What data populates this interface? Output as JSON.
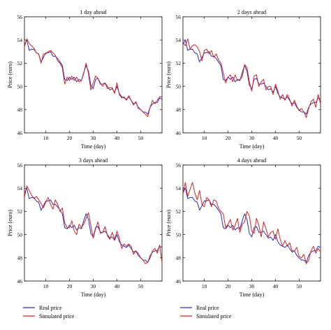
{
  "colors": {
    "real": "#2b2bb8",
    "simulated": "#d92020",
    "frame": "#000000"
  },
  "legend": {
    "placement": "bottom",
    "entries": [
      {
        "label": "Real price",
        "color": "#2b2bb8"
      },
      {
        "label": "Simulated price",
        "color": "#d92020"
      }
    ]
  },
  "chart_data": [
    {
      "type": "line",
      "title": "1 day ahead",
      "xlabel": "Time (day)",
      "ylabel": "Price (euro)",
      "xlim": [
        1,
        59
      ],
      "ylim": [
        46,
        56
      ],
      "xticks": [
        10,
        20,
        30,
        40,
        50
      ],
      "yticks": [
        46,
        48,
        50,
        52,
        54,
        56
      ],
      "grid": false,
      "series": [
        {
          "name": "Real price",
          "key": "real",
          "x": [
            1,
            2,
            3,
            4,
            5,
            6,
            7,
            8,
            9,
            10,
            11,
            12,
            13,
            14,
            15,
            16,
            17,
            18,
            19,
            20,
            21,
            22,
            23,
            24,
            25,
            26,
            27,
            28,
            29,
            30,
            31,
            32,
            33,
            34,
            35,
            36,
            37,
            38,
            39,
            40,
            41,
            42,
            43,
            44,
            45,
            46,
            47,
            48,
            49,
            50,
            51,
            52,
            53,
            54,
            55,
            56,
            57,
            58,
            59
          ],
          "values": [
            53.6,
            54.0,
            53.1,
            53.2,
            53.2,
            52.9,
            52.8,
            52.1,
            52.5,
            52.9,
            52.9,
            53.0,
            52.6,
            52.6,
            52.4,
            52.1,
            51.8,
            50.6,
            50.5,
            50.8,
            50.6,
            50.8,
            50.4,
            50.6,
            50.5,
            51.2,
            51.8,
            51.3,
            50.1,
            49.8,
            50.6,
            50.7,
            50.2,
            50.2,
            50.3,
            50.0,
            49.7,
            49.8,
            49.5,
            50.0,
            49.4,
            49.1,
            49.0,
            48.9,
            49.1,
            48.8,
            48.5,
            48.6,
            48.2,
            48.0,
            47.8,
            47.8,
            47.6,
            48.2,
            48.5,
            48.6,
            48.6,
            49.0,
            48.9
          ]
        },
        {
          "name": "Simulated price",
          "key": "simulated",
          "x": [
            1,
            2,
            3,
            4,
            5,
            6,
            7,
            8,
            9,
            10,
            11,
            12,
            13,
            14,
            15,
            16,
            17,
            18,
            19,
            20,
            21,
            22,
            23,
            24,
            25,
            26,
            27,
            28,
            29,
            30,
            31,
            32,
            33,
            34,
            35,
            36,
            37,
            38,
            39,
            40,
            41,
            42,
            43,
            44,
            45,
            46,
            47,
            48,
            49,
            50,
            51,
            52,
            53,
            54,
            55,
            56,
            57,
            58,
            59
          ],
          "values": [
            53.4,
            54.1,
            53.7,
            53.5,
            53.3,
            52.9,
            52.8,
            52.0,
            52.8,
            52.8,
            53.0,
            53.1,
            52.9,
            52.7,
            52.2,
            52.0,
            51.6,
            50.2,
            50.8,
            50.5,
            50.9,
            50.5,
            50.8,
            50.4,
            50.5,
            51.1,
            52.0,
            51.1,
            49.7,
            50.3,
            50.9,
            50.7,
            50.3,
            50.0,
            50.3,
            49.8,
            49.9,
            49.9,
            49.4,
            50.3,
            49.3,
            49.0,
            49.1,
            48.8,
            49.2,
            48.8,
            48.4,
            48.7,
            48.1,
            48.0,
            47.8,
            47.6,
            47.4,
            48.2,
            48.8,
            48.5,
            48.8,
            49.1,
            49.1
          ]
        }
      ]
    },
    {
      "type": "line",
      "title": "2 days ahead",
      "xlabel": "Time (day)",
      "ylabel": "Price (euro)",
      "xlim": [
        1,
        59
      ],
      "ylim": [
        46,
        56
      ],
      "xticks": [
        10,
        20,
        30,
        40,
        50
      ],
      "yticks": [
        46,
        48,
        50,
        52,
        54,
        56
      ],
      "grid": false,
      "series": [
        {
          "name": "Real price",
          "key": "real",
          "x": [
            1,
            2,
            3,
            4,
            5,
            6,
            7,
            8,
            9,
            10,
            11,
            12,
            13,
            14,
            15,
            16,
            17,
            18,
            19,
            20,
            21,
            22,
            23,
            24,
            25,
            26,
            27,
            28,
            29,
            30,
            31,
            32,
            33,
            34,
            35,
            36,
            37,
            38,
            39,
            40,
            41,
            42,
            43,
            44,
            45,
            46,
            47,
            48,
            49,
            50,
            51,
            52,
            53,
            54,
            55,
            56,
            57,
            58,
            59
          ],
          "values": [
            53.6,
            54.0,
            53.1,
            53.2,
            53.2,
            52.9,
            52.8,
            52.1,
            52.5,
            52.9,
            52.9,
            53.0,
            52.6,
            52.6,
            52.4,
            52.1,
            51.8,
            50.6,
            50.5,
            50.8,
            50.6,
            50.8,
            50.4,
            50.6,
            50.5,
            51.2,
            51.8,
            51.3,
            50.1,
            49.8,
            50.6,
            50.7,
            50.2,
            50.2,
            50.3,
            50.0,
            49.7,
            49.8,
            49.5,
            50.0,
            49.4,
            49.1,
            49.0,
            48.9,
            49.1,
            48.8,
            48.5,
            48.6,
            48.2,
            48.0,
            47.8,
            47.8,
            47.6,
            48.2,
            48.5,
            48.6,
            48.6,
            49.0,
            48.9
          ]
        },
        {
          "name": "Simulated price",
          "key": "simulated",
          "x": [
            1,
            2,
            3,
            4,
            5,
            6,
            7,
            8,
            9,
            10,
            11,
            12,
            13,
            14,
            15,
            16,
            17,
            18,
            19,
            20,
            21,
            22,
            23,
            24,
            25,
            26,
            27,
            28,
            29,
            30,
            31,
            32,
            33,
            34,
            35,
            36,
            37,
            38,
            39,
            40,
            41,
            42,
            43,
            44,
            45,
            46,
            47,
            48,
            49,
            50,
            51,
            52,
            53,
            54,
            55,
            56,
            57,
            58,
            59
          ],
          "values": [
            53.8,
            53.5,
            54.1,
            53.2,
            53.5,
            53.6,
            53.4,
            53.0,
            52.2,
            53.1,
            53.2,
            52.8,
            53.1,
            52.5,
            52.8,
            52.3,
            52.0,
            51.2,
            50.3,
            50.8,
            51.0,
            50.4,
            51.0,
            50.5,
            50.6,
            50.8,
            51.9,
            51.6,
            50.4,
            49.6,
            50.9,
            51.0,
            50.0,
            50.4,
            50.6,
            49.7,
            50.0,
            50.0,
            49.3,
            50.2,
            49.6,
            48.9,
            49.3,
            48.8,
            49.3,
            48.9,
            48.3,
            48.8,
            48.3,
            47.9,
            48.1,
            47.8,
            47.3,
            48.1,
            48.7,
            48.9,
            48.2,
            49.3,
            48.5
          ]
        }
      ]
    },
    {
      "type": "line",
      "title": "3 days ahead",
      "xlabel": "Time (day)",
      "ylabel": "Price (euro)",
      "xlim": [
        1,
        59
      ],
      "ylim": [
        46,
        56
      ],
      "xticks": [
        10,
        20,
        30,
        40,
        50
      ],
      "yticks": [
        46,
        48,
        50,
        52,
        54,
        56
      ],
      "grid": false,
      "series": [
        {
          "name": "Real price",
          "key": "real",
          "x": [
            1,
            2,
            3,
            4,
            5,
            6,
            7,
            8,
            9,
            10,
            11,
            12,
            13,
            14,
            15,
            16,
            17,
            18,
            19,
            20,
            21,
            22,
            23,
            24,
            25,
            26,
            27,
            28,
            29,
            30,
            31,
            32,
            33,
            34,
            35,
            36,
            37,
            38,
            39,
            40,
            41,
            42,
            43,
            44,
            45,
            46,
            47,
            48,
            49,
            50,
            51,
            52,
            53,
            54,
            55,
            56,
            57,
            58,
            59
          ],
          "values": [
            53.6,
            54.0,
            53.1,
            53.2,
            53.2,
            52.9,
            52.8,
            52.1,
            52.5,
            52.9,
            52.9,
            53.0,
            52.6,
            52.6,
            52.4,
            52.1,
            51.8,
            50.6,
            50.5,
            50.8,
            50.6,
            50.8,
            50.4,
            50.6,
            50.5,
            51.2,
            51.8,
            51.3,
            50.1,
            49.8,
            50.6,
            50.7,
            50.2,
            50.2,
            50.3,
            50.0,
            49.7,
            49.8,
            49.5,
            50.0,
            49.4,
            49.1,
            49.0,
            48.9,
            49.1,
            48.8,
            48.5,
            48.6,
            48.2,
            48.0,
            47.8,
            47.8,
            47.6,
            48.2,
            48.5,
            48.6,
            48.6,
            49.0,
            48.9
          ]
        },
        {
          "name": "Simulated price",
          "key": "simulated",
          "x": [
            1,
            2,
            3,
            4,
            5,
            6,
            7,
            8,
            9,
            10,
            11,
            12,
            13,
            14,
            15,
            16,
            17,
            18,
            19,
            20,
            21,
            22,
            23,
            24,
            25,
            26,
            27,
            28,
            29,
            30,
            31,
            32,
            33,
            34,
            35,
            36,
            37,
            38,
            39,
            40,
            41,
            42,
            43,
            44,
            45,
            46,
            47,
            48,
            49,
            50,
            51,
            52,
            53,
            54,
            55,
            56,
            57,
            58,
            59
          ],
          "values": [
            53.2,
            54.2,
            53.8,
            53.4,
            53.1,
            53.3,
            53.0,
            52.7,
            52.3,
            52.8,
            53.2,
            52.6,
            52.2,
            53.0,
            52.6,
            52.0,
            52.3,
            51.0,
            50.6,
            50.6,
            51.2,
            50.3,
            50.0,
            50.9,
            50.6,
            50.9,
            51.4,
            51.9,
            50.8,
            49.7,
            50.5,
            51.1,
            50.1,
            50.2,
            50.7,
            49.9,
            49.6,
            50.2,
            49.6,
            50.3,
            49.7,
            48.8,
            49.2,
            49.0,
            49.2,
            49.0,
            48.3,
            48.6,
            48.4,
            48.0,
            47.8,
            47.5,
            47.6,
            48.0,
            48.6,
            48.8,
            48.4,
            49.1,
            47.6
          ]
        }
      ]
    },
    {
      "type": "line",
      "title": "4 days ahead",
      "xlabel": "Time (day)",
      "ylabel": "Price (euro)",
      "xlim": [
        1,
        59
      ],
      "ylim": [
        46,
        56
      ],
      "xticks": [
        10,
        20,
        30,
        40,
        50
      ],
      "yticks": [
        46,
        48,
        50,
        52,
        54,
        56
      ],
      "grid": false,
      "series": [
        {
          "name": "Real price",
          "key": "real",
          "x": [
            1,
            2,
            3,
            4,
            5,
            6,
            7,
            8,
            9,
            10,
            11,
            12,
            13,
            14,
            15,
            16,
            17,
            18,
            19,
            20,
            21,
            22,
            23,
            24,
            25,
            26,
            27,
            28,
            29,
            30,
            31,
            32,
            33,
            34,
            35,
            36,
            37,
            38,
            39,
            40,
            41,
            42,
            43,
            44,
            45,
            46,
            47,
            48,
            49,
            50,
            51,
            52,
            53,
            54,
            55,
            56,
            57,
            58,
            59
          ],
          "values": [
            53.6,
            54.0,
            53.1,
            53.2,
            53.2,
            52.9,
            52.8,
            52.1,
            52.5,
            52.9,
            52.9,
            53.0,
            52.6,
            52.6,
            52.4,
            52.1,
            51.8,
            50.6,
            50.5,
            50.8,
            50.6,
            50.8,
            50.4,
            50.6,
            50.5,
            51.2,
            51.8,
            51.3,
            50.1,
            49.8,
            50.6,
            50.7,
            50.2,
            50.2,
            50.3,
            50.0,
            49.7,
            49.8,
            49.5,
            50.0,
            49.4,
            49.1,
            49.0,
            48.9,
            49.1,
            48.8,
            48.5,
            48.6,
            48.2,
            48.0,
            47.8,
            47.8,
            47.6,
            48.2,
            48.5,
            48.6,
            48.6,
            49.0,
            48.9
          ]
        },
        {
          "name": "Simulated price",
          "key": "simulated",
          "x": [
            1,
            2,
            3,
            4,
            5,
            6,
            7,
            8,
            9,
            10,
            11,
            12,
            13,
            14,
            15,
            16,
            17,
            18,
            19,
            20,
            21,
            22,
            23,
            24,
            25,
            26,
            27,
            28,
            29,
            30,
            31,
            32,
            33,
            34,
            35,
            36,
            37,
            38,
            39,
            40,
            41,
            42,
            43,
            44,
            45,
            46,
            47,
            48,
            49,
            50,
            51,
            52,
            53,
            54,
            55,
            56,
            57,
            58,
            59
          ],
          "values": [
            53.5,
            54.5,
            53.3,
            53.9,
            54.5,
            53.6,
            53.0,
            53.8,
            52.6,
            52.4,
            53.2,
            53.0,
            52.4,
            53.0,
            52.9,
            52.3,
            52.0,
            51.8,
            50.6,
            50.9,
            51.3,
            50.4,
            50.8,
            51.4,
            50.2,
            50.9,
            51.1,
            52.0,
            51.6,
            50.3,
            50.1,
            51.4,
            50.8,
            49.8,
            51.1,
            50.5,
            49.8,
            50.2,
            50.3,
            49.6,
            50.5,
            49.6,
            49.0,
            49.5,
            49.0,
            49.3,
            48.6,
            48.6,
            48.9,
            48.1,
            48.0,
            48.3,
            47.5,
            47.8,
            48.6,
            49.0,
            48.4,
            48.8,
            48.5
          ]
        }
      ]
    }
  ]
}
